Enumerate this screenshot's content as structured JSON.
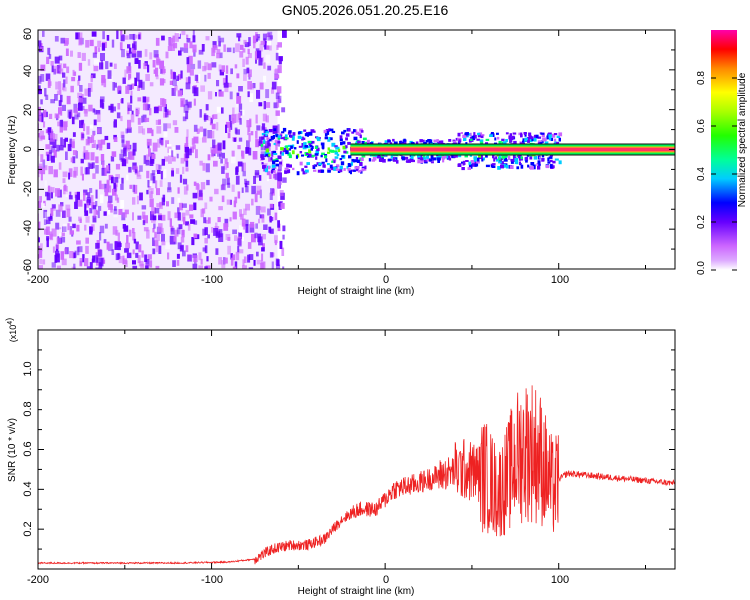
{
  "title": "GN05.2026.051.20.25.E16",
  "colors": {
    "series": "#ee2222",
    "axis": "#000000",
    "background": "#ffffff",
    "trace_core": "#ff3366"
  },
  "chart_data": [
    {
      "type": "heatmap",
      "xlabel": "Height of straight line (km)",
      "ylabel": "Frequency (Hz)",
      "xlim": [
        -200,
        167
      ],
      "ylim": [
        -60,
        60
      ],
      "xticks": [
        "-200",
        "-100",
        "0",
        "100"
      ],
      "yticks": [
        "60",
        "40",
        "20",
        "0",
        "-20",
        "-40",
        "-60"
      ],
      "colorbar": {
        "label": "Normalized spectral amplitude",
        "range": [
          0,
          1
        ],
        "ticks": [
          "0.0",
          "0.2",
          "0.4",
          "0.6",
          "0.8"
        ],
        "colors": [
          "#ffffff",
          "#cc66ff",
          "#6600ff",
          "#0000ff",
          "#00ccff",
          "#00ff66",
          "#66ff00",
          "#ffff00",
          "#ff8800",
          "#ff0000",
          "#ff00aa"
        ]
      },
      "regions": [
        {
          "name": "diffuse noise",
          "x_range": [
            -200,
            -62
          ],
          "freq_range": [
            -60,
            60
          ],
          "amplitude": 0.15
        },
        {
          "name": "broad signal",
          "x_range": [
            -72,
            100
          ],
          "freq_range": [
            -10,
            10
          ],
          "amplitude": 0.35
        },
        {
          "name": "narrow trace",
          "x_range": [
            -20,
            167
          ],
          "freq_range": [
            -1,
            1
          ],
          "amplitude": 1.0
        }
      ]
    },
    {
      "type": "line",
      "xlabel": "Height of straight line (km)",
      "ylabel": "SNR (10 * v/v)",
      "scale_label": "(x10",
      "scale_exp": "4",
      "xlim": [
        -200,
        167
      ],
      "ylim": [
        0,
        1.2
      ],
      "xticks": [
        "-200",
        "-100",
        "0",
        "100"
      ],
      "yticks": [
        "0.2",
        "0.4",
        "0.6",
        "0.8",
        "1.0"
      ],
      "series": [
        {
          "name": "SNR",
          "x": [
            -200,
            -160,
            -120,
            -90,
            -75,
            -65,
            -55,
            -45,
            -35,
            -25,
            -15,
            -5,
            5,
            15,
            25,
            35,
            45,
            55,
            60,
            65,
            70,
            75,
            80,
            85,
            90,
            94,
            97,
            100,
            105,
            130,
            167
          ],
          "y": [
            0.03,
            0.03,
            0.03,
            0.035,
            0.05,
            0.1,
            0.12,
            0.12,
            0.15,
            0.25,
            0.3,
            0.3,
            0.4,
            0.42,
            0.45,
            0.48,
            0.5,
            0.48,
            0.45,
            0.38,
            0.45,
            0.55,
            0.6,
            0.6,
            0.55,
            0.45,
            0.4,
            0.45,
            0.48,
            0.46,
            0.43
          ]
        }
      ]
    }
  ]
}
